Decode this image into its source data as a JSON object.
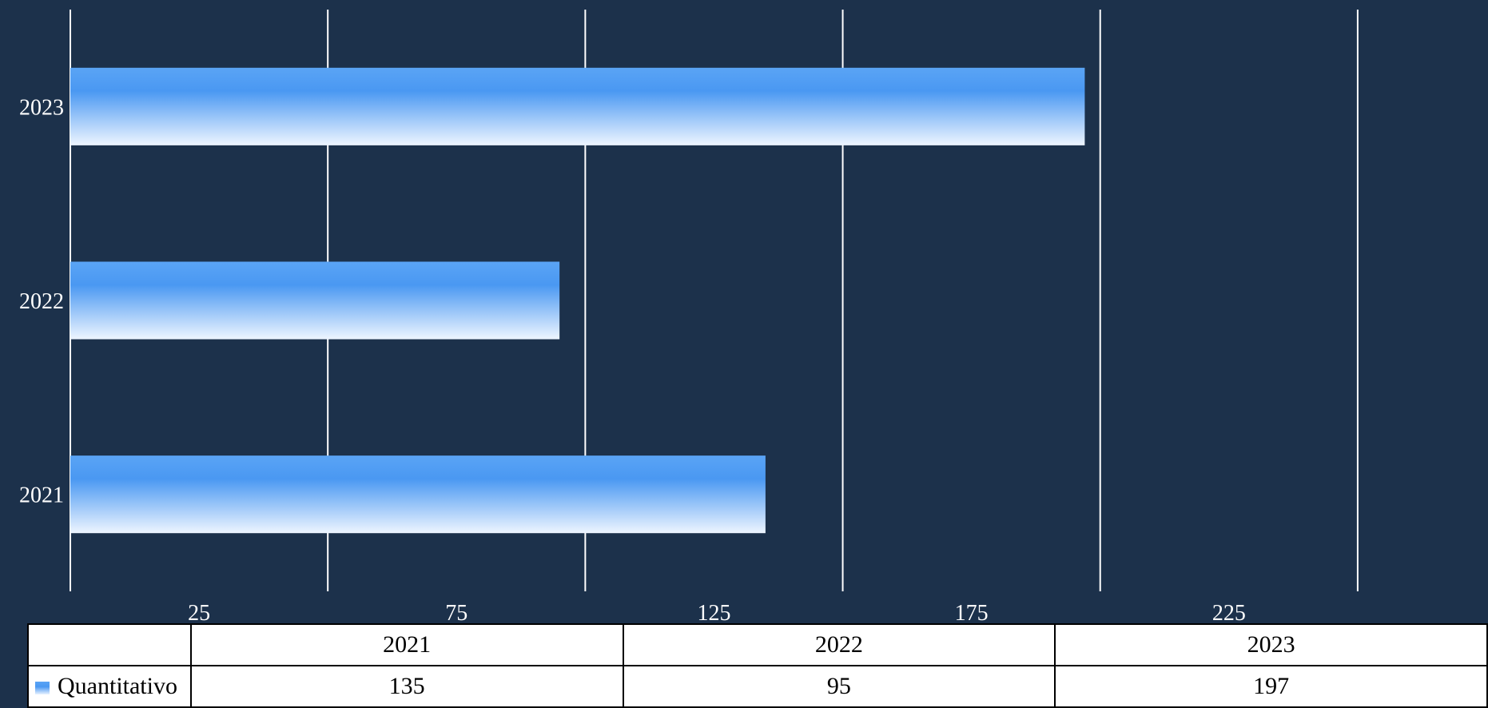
{
  "chart_data": {
    "type": "bar",
    "orientation": "horizontal",
    "categories": [
      "2021",
      "2022",
      "2023"
    ],
    "series": [
      {
        "name": "Quantitativo",
        "values": [
          135,
          95,
          197
        ]
      }
    ],
    "x_ticks": [
      "25",
      "75",
      "125",
      "175",
      "225"
    ],
    "xlim": [
      0,
      275
    ],
    "grid": true,
    "data_table": true,
    "colors": {
      "background": "#1c314b",
      "bar_top": "#5aa4f5",
      "bar_mid": "#4a98f2",
      "bar_bottom": "#e8f2ff",
      "grid": "#ffffff"
    }
  }
}
